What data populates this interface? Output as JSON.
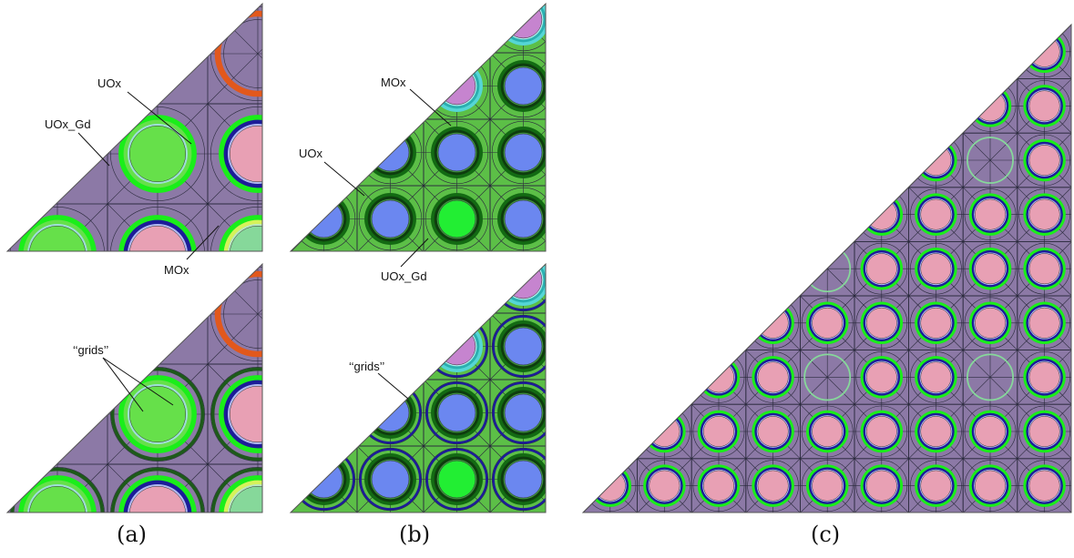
{
  "colors": {
    "moderator_purple": "#8c79a6",
    "moderator_green": "#5cbf47",
    "uox_pink": "#e8a0b4",
    "uox_blue": "#6b87f0",
    "mox_light_green": "#86d89a",
    "mox_violet": "#c684cf",
    "uoxgd_bright_green": "#66e04a",
    "uoxgd_lime": "#22ee33",
    "clad_green": "#1aee1a",
    "clad_blue": "#1c1c98",
    "clad_dark_green": "#1d5a1a",
    "guide_orange": "#e2581c",
    "grid_line": "#2a2a3c"
  },
  "panels": {
    "a_top": {
      "labels": {
        "uox": "UOx",
        "uox_gd": "UOx_Gd",
        "mox": "MOx"
      }
    },
    "a_bottom": {
      "labels": {
        "grids": "‘‘grids’’"
      }
    },
    "b_top": {
      "labels": {
        "mox": "MOx",
        "uox": "UOx",
        "uox_gd": "UOx_Gd"
      }
    },
    "b_bottom": {
      "labels": {
        "grids": "‘‘grids’’"
      }
    }
  },
  "captions": {
    "a": "(a)",
    "b": "(b)",
    "c": "(c)"
  }
}
